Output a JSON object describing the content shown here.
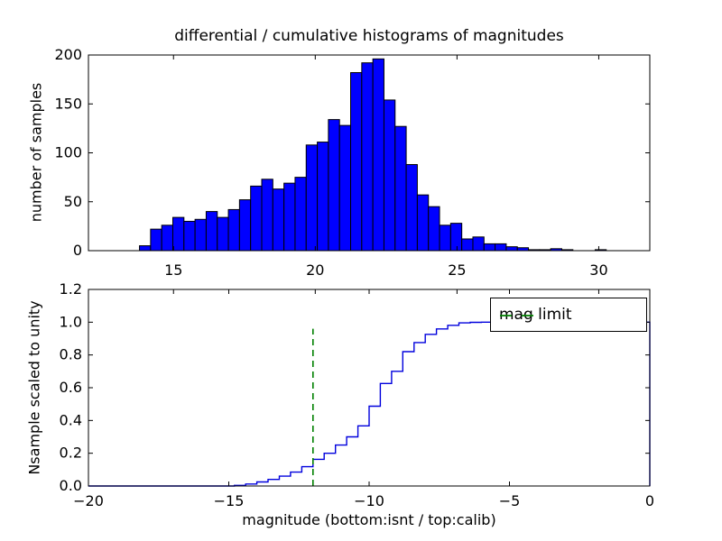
{
  "figure_title": "differential / cumulative histograms of magnitudes",
  "colors": {
    "background": "#ffffff",
    "hist_fill": "#0000ff",
    "hist_edge": "#000000",
    "cumulative_line": "#0000dd",
    "mag_limit_green": "#008000",
    "axis": "#000000"
  },
  "chart_data": [
    {
      "type": "bar",
      "subplot": "top",
      "role": "differential histogram of calibrated magnitudes",
      "title": "differential / cumulative histograms of magnitudes",
      "ylabel": "number of samples",
      "xlabel": "",
      "xlim": [
        12,
        31.8
      ],
      "ylim": [
        0,
        200
      ],
      "xticks": {
        "values": [
          15,
          20,
          25,
          30
        ],
        "labels": [
          "15",
          "20",
          "25",
          "30"
        ]
      },
      "yticks": {
        "values": [
          0,
          50,
          100,
          150,
          200
        ],
        "labels": [
          "0",
          "50",
          "100",
          "150",
          "200"
        ]
      },
      "grid": false,
      "bins": {
        "start": 13.8,
        "width": 0.392
      },
      "counts": [
        5,
        22,
        26,
        34,
        30,
        32,
        40,
        34,
        42,
        52,
        66,
        73,
        63,
        69,
        75,
        108,
        111,
        134,
        128,
        182,
        192,
        196,
        154,
        127,
        88,
        57,
        45,
        26,
        28,
        12,
        14,
        7,
        7,
        4,
        3,
        1,
        1,
        2,
        1,
        0,
        0,
        1,
        0,
        0,
        0,
        0,
        0
      ],
      "bar_fill": "#0000ff",
      "bar_edge": "#000000"
    },
    {
      "type": "line",
      "style": "step",
      "subplot": "bottom",
      "role": "cumulative histogram scaled to unity",
      "ylabel": "Nsample scaled to unity",
      "xlabel": "magnitude (bottom:isnt / top:calib)",
      "xlim": [
        -20,
        0
      ],
      "ylim": [
        0,
        1.2
      ],
      "xticks": {
        "values": [
          -20,
          -15,
          -10,
          -5,
          0
        ],
        "labels": [
          "−20",
          "−15",
          "−10",
          "−5",
          "0"
        ]
      },
      "yticks": {
        "values": [
          0,
          0.2,
          0.4,
          0.6,
          0.8,
          1.0,
          1.2
        ],
        "labels": [
          "0.0",
          "0.2",
          "0.4",
          "0.6",
          "0.8",
          "1.0",
          "1.2"
        ]
      },
      "grid": false,
      "top_axis_calib_ticks": [
        15,
        20,
        25,
        30
      ],
      "cumulative": {
        "bin_start": -14.8,
        "bin_width": 0.4,
        "values": [
          0.004,
          0.012,
          0.025,
          0.04,
          0.06,
          0.085,
          0.118,
          0.163,
          0.2,
          0.25,
          0.3,
          0.367,
          0.487,
          0.626,
          0.7,
          0.82,
          0.876,
          0.926,
          0.959,
          0.981,
          0.996,
          0.999,
          1.0
        ]
      },
      "line_color": "#0000dd",
      "vline": {
        "x": -12,
        "y_from": 0,
        "y_to": 0.96,
        "color": "#008000",
        "style": "dashed"
      },
      "legend": {
        "label": "mag limit",
        "position": "upper right"
      }
    }
  ]
}
